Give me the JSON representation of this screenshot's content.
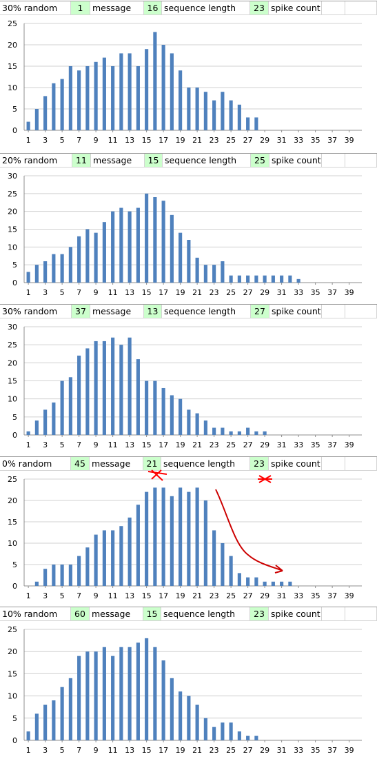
{
  "colors": {
    "bar": "#4f81bd",
    "header_value_bg": "#ccffcc",
    "annotation": "#ff0000"
  },
  "chart_data": [
    {
      "type": "bar",
      "header": {
        "random": "30% random",
        "message_value": "1",
        "message_label": "message",
        "seq_value": "16",
        "seq_label": "sequence length",
        "spike_value": "23",
        "spike_label": "spike count"
      },
      "x": [
        1,
        2,
        3,
        4,
        5,
        6,
        7,
        8,
        9,
        10,
        11,
        12,
        13,
        14,
        15,
        16,
        17,
        18,
        19,
        20,
        21,
        22,
        23,
        24,
        25,
        26,
        27,
        28,
        29,
        30,
        31,
        32,
        33,
        34,
        35,
        36,
        37,
        38,
        39,
        40
      ],
      "values": [
        2,
        5,
        8,
        11,
        12,
        15,
        14,
        15,
        16,
        17,
        15,
        18,
        18,
        15,
        19,
        23,
        20,
        18,
        14,
        10,
        10,
        9,
        7,
        9,
        7,
        6,
        3,
        3,
        0,
        0,
        0,
        0,
        0,
        0,
        0,
        0,
        0,
        0,
        0,
        0
      ],
      "xticks": [
        "1",
        "3",
        "5",
        "7",
        "9",
        "11",
        "13",
        "15",
        "17",
        "19",
        "21",
        "23",
        "25",
        "27",
        "29",
        "31",
        "33",
        "35",
        "37",
        "39"
      ],
      "yticks": [
        "0",
        "5",
        "10",
        "15",
        "20",
        "25"
      ],
      "ylim": [
        0,
        25
      ],
      "grid": true
    },
    {
      "type": "bar",
      "header": {
        "random": "20% random",
        "message_value": "11",
        "message_label": "message",
        "seq_value": "15",
        "seq_label": "sequence length",
        "spike_value": "25",
        "spike_label": "spike count"
      },
      "x": [
        1,
        2,
        3,
        4,
        5,
        6,
        7,
        8,
        9,
        10,
        11,
        12,
        13,
        14,
        15,
        16,
        17,
        18,
        19,
        20,
        21,
        22,
        23,
        24,
        25,
        26,
        27,
        28,
        29,
        30,
        31,
        32,
        33,
        34,
        35,
        36,
        37,
        38,
        39,
        40
      ],
      "values": [
        3,
        5,
        6,
        8,
        8,
        10,
        13,
        15,
        14,
        17,
        20,
        21,
        20,
        21,
        25,
        24,
        23,
        19,
        14,
        12,
        7,
        5,
        5,
        6,
        2,
        2,
        2,
        2,
        2,
        2,
        2,
        2,
        1,
        0,
        0,
        0,
        0,
        0,
        0,
        0
      ],
      "xticks": [
        "1",
        "3",
        "5",
        "7",
        "9",
        "11",
        "13",
        "15",
        "17",
        "19",
        "21",
        "23",
        "25",
        "27",
        "29",
        "31",
        "33",
        "35",
        "37",
        "39"
      ],
      "yticks": [
        "0",
        "5",
        "10",
        "15",
        "20",
        "25",
        "30"
      ],
      "ylim": [
        0,
        30
      ],
      "grid": true
    },
    {
      "type": "bar",
      "header": {
        "random": "30% random",
        "message_value": "37",
        "message_label": "message",
        "seq_value": "13",
        "seq_label": "sequence length",
        "spike_value": "27",
        "spike_label": "spike count"
      },
      "x": [
        1,
        2,
        3,
        4,
        5,
        6,
        7,
        8,
        9,
        10,
        11,
        12,
        13,
        14,
        15,
        16,
        17,
        18,
        19,
        20,
        21,
        22,
        23,
        24,
        25,
        26,
        27,
        28,
        29,
        30,
        31,
        32,
        33,
        34,
        35,
        36,
        37,
        38,
        39,
        40
      ],
      "values": [
        1,
        4,
        7,
        9,
        15,
        16,
        22,
        24,
        26,
        26,
        27,
        25,
        27,
        21,
        15,
        15,
        13,
        11,
        10,
        7,
        6,
        4,
        2,
        2,
        1,
        1,
        2,
        1,
        1,
        0,
        0,
        0,
        0,
        0,
        0,
        0,
        0,
        0,
        0,
        0
      ],
      "xticks": [
        "1",
        "3",
        "5",
        "7",
        "9",
        "11",
        "13",
        "15",
        "17",
        "19",
        "21",
        "23",
        "25",
        "27",
        "29",
        "31",
        "33",
        "35",
        "37",
        "39"
      ],
      "yticks": [
        "0",
        "5",
        "10",
        "15",
        "20",
        "25",
        "30"
      ],
      "ylim": [
        0,
        30
      ],
      "grid": true
    },
    {
      "type": "bar",
      "header": {
        "random": "0% random",
        "message_value": "45",
        "message_label": "message",
        "seq_value": "21",
        "seq_label": "sequence length",
        "spike_value": "23",
        "spike_label": "spike count"
      },
      "x": [
        1,
        2,
        3,
        4,
        5,
        6,
        7,
        8,
        9,
        10,
        11,
        12,
        13,
        14,
        15,
        16,
        17,
        18,
        19,
        20,
        21,
        22,
        23,
        24,
        25,
        26,
        27,
        28,
        29,
        30,
        31,
        32,
        33,
        34,
        35,
        36,
        37,
        38,
        39,
        40
      ],
      "values": [
        0,
        1,
        4,
        5,
        5,
        5,
        7,
        9,
        12,
        13,
        13,
        14,
        16,
        19,
        22,
        23,
        23,
        21,
        23,
        22,
        23,
        20,
        13,
        10,
        7,
        3,
        2,
        2,
        1,
        1,
        1,
        1,
        0,
        0,
        0,
        0,
        0,
        0,
        0,
        0
      ],
      "xticks": [
        "1",
        "3",
        "5",
        "7",
        "9",
        "11",
        "13",
        "15",
        "17",
        "19",
        "21",
        "23",
        "25",
        "27",
        "29",
        "31",
        "33",
        "35",
        "37",
        "39"
      ],
      "yticks": [
        "0",
        "5",
        "10",
        "15",
        "20",
        "25"
      ],
      "ylim": [
        0,
        25
      ],
      "grid": true
    },
    {
      "type": "bar",
      "header": {
        "random": "10% random",
        "message_value": "60",
        "message_label": "message",
        "seq_value": "15",
        "seq_label": "sequence length",
        "spike_value": "23",
        "spike_label": "spike count"
      },
      "x": [
        1,
        2,
        3,
        4,
        5,
        6,
        7,
        8,
        9,
        10,
        11,
        12,
        13,
        14,
        15,
        16,
        17,
        18,
        19,
        20,
        21,
        22,
        23,
        24,
        25,
        26,
        27,
        28,
        29,
        30,
        31,
        32,
        33,
        34,
        35,
        36,
        37,
        38,
        39,
        40
      ],
      "values": [
        2,
        6,
        8,
        9,
        12,
        14,
        19,
        20,
        20,
        21,
        19,
        21,
        21,
        22,
        23,
        21,
        18,
        14,
        11,
        10,
        8,
        5,
        3,
        4,
        4,
        2,
        1,
        1,
        0,
        0,
        0,
        0,
        0,
        0,
        0,
        0,
        0,
        0,
        0,
        0
      ],
      "xticks": [
        "1",
        "3",
        "5",
        "7",
        "9",
        "11",
        "13",
        "15",
        "17",
        "19",
        "21",
        "23",
        "25",
        "27",
        "29",
        "31",
        "33",
        "35",
        "37",
        "39"
      ],
      "yticks": [
        "0",
        "5",
        "10",
        "15",
        "20",
        "25"
      ],
      "ylim": [
        0,
        25
      ],
      "grid": true
    }
  ]
}
